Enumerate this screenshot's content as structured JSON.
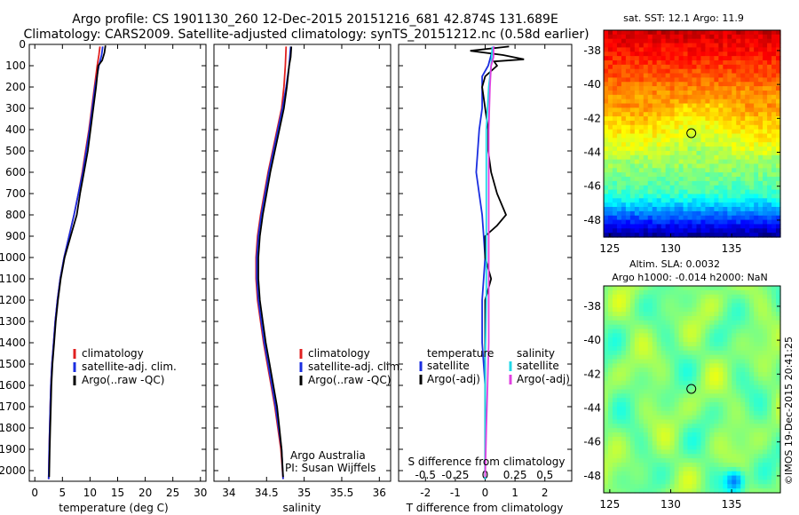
{
  "header": {
    "title_line1": "Argo profile: CS 1901130_260 12-Dec-2015 20151216_681 42.874S 131.689E",
    "title_line2": "Climatology: CARS2009. Satellite-adjusted climatology: synTS_20151212.nc (0.58d earlier)"
  },
  "colors": {
    "climatology": "#e02020",
    "satellite": "#1a2ee0",
    "argo": "#000000",
    "sal_satellite": "#22d8e8",
    "sal_argo": "#e040e0"
  },
  "chart_data": [
    {
      "type": "line",
      "name": "temperature",
      "xlabel": "temperature (deg C)",
      "ylabel": "",
      "xlim": [
        -1,
        31
      ],
      "ylim": [
        2050,
        0
      ],
      "xticks": [
        0,
        5,
        10,
        15,
        20,
        25,
        30
      ],
      "yticks": [
        0,
        100,
        200,
        300,
        400,
        500,
        600,
        700,
        800,
        900,
        1000,
        1100,
        1200,
        1300,
        1400,
        1500,
        1600,
        1700,
        1800,
        1900,
        2000
      ],
      "legend": [
        "climatology",
        "satellite-adj. clim.",
        "Argo(..raw -QC)"
      ],
      "series": [
        {
          "name": "climatology",
          "color": "#e02020",
          "points": [
            [
              11.8,
              10
            ],
            [
              11.6,
              50
            ],
            [
              11.3,
              100
            ],
            [
              10.8,
              200
            ],
            [
              10.3,
              300
            ],
            [
              9.8,
              400
            ],
            [
              9.2,
              500
            ],
            [
              8.6,
              600
            ],
            [
              7.9,
              700
            ],
            [
              7.1,
              800
            ],
            [
              6.2,
              900
            ],
            [
              5.3,
              1000
            ],
            [
              4.6,
              1100
            ],
            [
              4.1,
              1200
            ],
            [
              3.7,
              1300
            ],
            [
              3.4,
              1400
            ],
            [
              3.1,
              1500
            ],
            [
              2.9,
              1600
            ],
            [
              2.8,
              1700
            ],
            [
              2.7,
              1800
            ],
            [
              2.6,
              1900
            ],
            [
              2.5,
              2040
            ]
          ]
        },
        {
          "name": "satellite-adj. clim.",
          "color": "#1a2ee0",
          "points": [
            [
              12.3,
              10
            ],
            [
              12.1,
              50
            ],
            [
              11.6,
              100
            ],
            [
              10.9,
              200
            ],
            [
              10.4,
              300
            ],
            [
              9.9,
              400
            ],
            [
              9.3,
              500
            ],
            [
              8.7,
              600
            ],
            [
              7.9,
              700
            ],
            [
              7.1,
              800
            ],
            [
              6.2,
              900
            ],
            [
              5.3,
              1000
            ],
            [
              4.6,
              1100
            ],
            [
              4.1,
              1200
            ],
            [
              3.7,
              1300
            ],
            [
              3.4,
              1400
            ],
            [
              3.1,
              1500
            ],
            [
              2.9,
              1600
            ],
            [
              2.8,
              1700
            ],
            [
              2.7,
              1800
            ],
            [
              2.6,
              1900
            ],
            [
              2.5,
              2040
            ]
          ]
        },
        {
          "name": "Argo(..raw -QC)",
          "color": "#000000",
          "points": [
            [
              12.8,
              5
            ],
            [
              12.6,
              40
            ],
            [
              12.2,
              75
            ],
            [
              11.5,
              100
            ],
            [
              11.1,
              200
            ],
            [
              10.6,
              300
            ],
            [
              10.1,
              400
            ],
            [
              9.6,
              500
            ],
            [
              8.9,
              600
            ],
            [
              8.2,
              700
            ],
            [
              7.6,
              800
            ],
            [
              6.5,
              900
            ],
            [
              5.4,
              1000
            ],
            [
              4.7,
              1100
            ],
            [
              4.2,
              1200
            ],
            [
              3.8,
              1300
            ],
            [
              3.5,
              1400
            ],
            [
              3.2,
              1500
            ],
            [
              3.0,
              1600
            ],
            [
              2.9,
              1700
            ],
            [
              2.8,
              1800
            ],
            [
              2.7,
              1900
            ],
            [
              2.6,
              2030
            ]
          ]
        }
      ]
    },
    {
      "type": "line",
      "name": "salinity",
      "xlabel": "salinity",
      "xlim": [
        33.8,
        36.15
      ],
      "ylim": [
        2050,
        0
      ],
      "xticks": [
        34,
        34.5,
        35,
        35.5,
        36
      ],
      "legend": [
        "climatology",
        "satellite-adj. clim.",
        "Argo(..raw -QC)"
      ],
      "annotation": [
        "Argo Australia",
        "PI: Susan Wijffels"
      ],
      "series": [
        {
          "name": "climatology",
          "color": "#e02020",
          "points": [
            [
              34.76,
              10
            ],
            [
              34.75,
              100
            ],
            [
              34.73,
              200
            ],
            [
              34.7,
              300
            ],
            [
              34.64,
              400
            ],
            [
              34.58,
              500
            ],
            [
              34.52,
              600
            ],
            [
              34.47,
              700
            ],
            [
              34.42,
              800
            ],
            [
              34.38,
              900
            ],
            [
              34.36,
              1000
            ],
            [
              34.36,
              1100
            ],
            [
              34.38,
              1200
            ],
            [
              34.42,
              1300
            ],
            [
              34.46,
              1400
            ],
            [
              34.51,
              1500
            ],
            [
              34.56,
              1600
            ],
            [
              34.61,
              1700
            ],
            [
              34.65,
              1800
            ],
            [
              34.69,
              1900
            ],
            [
              34.72,
              2040
            ]
          ]
        },
        {
          "name": "satellite-adj. clim.",
          "color": "#1a2ee0",
          "points": [
            [
              34.82,
              10
            ],
            [
              34.8,
              100
            ],
            [
              34.76,
              200
            ],
            [
              34.71,
              300
            ],
            [
              34.65,
              400
            ],
            [
              34.59,
              500
            ],
            [
              34.53,
              600
            ],
            [
              34.48,
              700
            ],
            [
              34.43,
              800
            ],
            [
              34.39,
              900
            ],
            [
              34.37,
              1000
            ],
            [
              34.37,
              1100
            ],
            [
              34.39,
              1200
            ],
            [
              34.43,
              1300
            ],
            [
              34.47,
              1400
            ],
            [
              34.52,
              1500
            ],
            [
              34.57,
              1600
            ],
            [
              34.62,
              1700
            ],
            [
              34.66,
              1800
            ],
            [
              34.7,
              1900
            ],
            [
              34.72,
              2040
            ]
          ]
        },
        {
          "name": "Argo(..raw -QC)",
          "color": "#000000",
          "points": [
            [
              34.83,
              10
            ],
            [
              34.82,
              60
            ],
            [
              34.8,
              100
            ],
            [
              34.77,
              200
            ],
            [
              34.73,
              300
            ],
            [
              34.67,
              400
            ],
            [
              34.61,
              500
            ],
            [
              34.55,
              600
            ],
            [
              34.5,
              700
            ],
            [
              34.45,
              800
            ],
            [
              34.41,
              900
            ],
            [
              34.39,
              1000
            ],
            [
              34.39,
              1100
            ],
            [
              34.41,
              1200
            ],
            [
              34.45,
              1300
            ],
            [
              34.49,
              1400
            ],
            [
              34.54,
              1500
            ],
            [
              34.59,
              1600
            ],
            [
              34.64,
              1700
            ],
            [
              34.67,
              1800
            ],
            [
              34.7,
              1900
            ],
            [
              34.72,
              2030
            ]
          ]
        }
      ]
    },
    {
      "type": "line",
      "name": "difference",
      "xlabel": "T difference from climatology",
      "xlabel2": "S difference from climatology",
      "xlim": [
        -2.9,
        2.9
      ],
      "ylim": [
        2050,
        0
      ],
      "xticks": [
        -2,
        -1,
        0,
        1,
        2
      ],
      "xtick_labels": [
        "-2",
        "-1",
        "0",
        "1",
        "2"
      ],
      "xticks_s": [
        -0.5,
        -0.25,
        0,
        0.25,
        0.5
      ],
      "legend_t_header": "temperature",
      "legend_s_header": "salinity",
      "legend_t": [
        "satellite",
        "Argo(-adj)"
      ],
      "legend_s": [
        "satellite",
        "Argo(-adj)"
      ],
      "series": [
        {
          "name": "T satellite",
          "color": "#1a2ee0",
          "points": [
            [
              0.3,
              10
            ],
            [
              0.2,
              50
            ],
            [
              0.1,
              100
            ],
            [
              -0.1,
              150
            ],
            [
              -0.1,
              300
            ],
            [
              -0.2,
              400
            ],
            [
              -0.3,
              600
            ],
            [
              -0.1,
              800
            ],
            [
              0.0,
              1000
            ],
            [
              -0.1,
              1200
            ],
            [
              -0.1,
              1400
            ],
            [
              0.0,
              1600
            ],
            [
              0.0,
              1800
            ],
            [
              0.0,
              2040
            ]
          ]
        },
        {
          "name": "T Argo(-adj)",
          "color": "#000000",
          "points": [
            [
              0.8,
              10
            ],
            [
              -0.5,
              30
            ],
            [
              0.6,
              50
            ],
            [
              1.3,
              70
            ],
            [
              0.3,
              80
            ],
            [
              0.4,
              100
            ],
            [
              0.0,
              150
            ],
            [
              -0.1,
              200
            ],
            [
              0.0,
              300
            ],
            [
              0.1,
              400
            ],
            [
              0.1,
              500
            ],
            [
              0.2,
              600
            ],
            [
              0.4,
              700
            ],
            [
              0.7,
              800
            ],
            [
              0.4,
              850
            ],
            [
              0.0,
              900
            ],
            [
              0.0,
              1000
            ],
            [
              0.2,
              1100
            ],
            [
              0.0,
              1200
            ],
            [
              0.0,
              1400
            ],
            [
              0.0,
              1600
            ],
            [
              0.0,
              1800
            ],
            [
              0.0,
              2030
            ]
          ]
        },
        {
          "name": "S satellite",
          "color": "#22d8e8",
          "points": [
            [
              0.06,
              10
            ],
            [
              0.05,
              100
            ],
            [
              0.03,
              200
            ],
            [
              0.01,
              400
            ],
            [
              0.01,
              600
            ],
            [
              0.01,
              800
            ],
            [
              0.01,
              1000
            ],
            [
              0.01,
              1200
            ],
            [
              0.0,
              1500
            ],
            [
              0.0,
              1800
            ],
            [
              0.0,
              2040
            ]
          ]
        },
        {
          "name": "S Argo(-adj)",
          "color": "#e040e0",
          "points": [
            [
              0.07,
              10
            ],
            [
              0.07,
              60
            ],
            [
              0.05,
              100
            ],
            [
              0.04,
              200
            ],
            [
              0.03,
              400
            ],
            [
              0.03,
              600
            ],
            [
              0.03,
              800
            ],
            [
              0.03,
              1000
            ],
            [
              0.03,
              1200
            ],
            [
              0.03,
              1400
            ],
            [
              0.02,
              1600
            ],
            [
              0.01,
              1800
            ],
            [
              0.0,
              2030
            ]
          ]
        }
      ]
    },
    {
      "type": "heatmap",
      "name": "sst_map",
      "title": "sat. SST: 12.1  Argo: 11.9",
      "xlim": [
        124.5,
        139
      ],
      "ylim": [
        -49,
        -36.8
      ],
      "xticks": [
        125,
        130,
        135
      ],
      "yticks": [
        -38,
        -40,
        -42,
        -44,
        -46,
        -48
      ],
      "marker": [
        131.689,
        -42.874
      ]
    },
    {
      "type": "heatmap",
      "name": "sla_map",
      "title": "Altim. SLA: 0.0032",
      "subtitle": "Argo h1000: -0.014  h2000: NaN",
      "xlim": [
        124.5,
        139
      ],
      "ylim": [
        -49,
        -36.8
      ],
      "xticks": [
        125,
        130,
        135
      ],
      "yticks": [
        -38,
        -40,
        -42,
        -44,
        -46,
        -48
      ],
      "marker": [
        131.689,
        -42.874
      ]
    }
  ],
  "credit": "©IMOS 19-Dec-2015 20:41:25"
}
